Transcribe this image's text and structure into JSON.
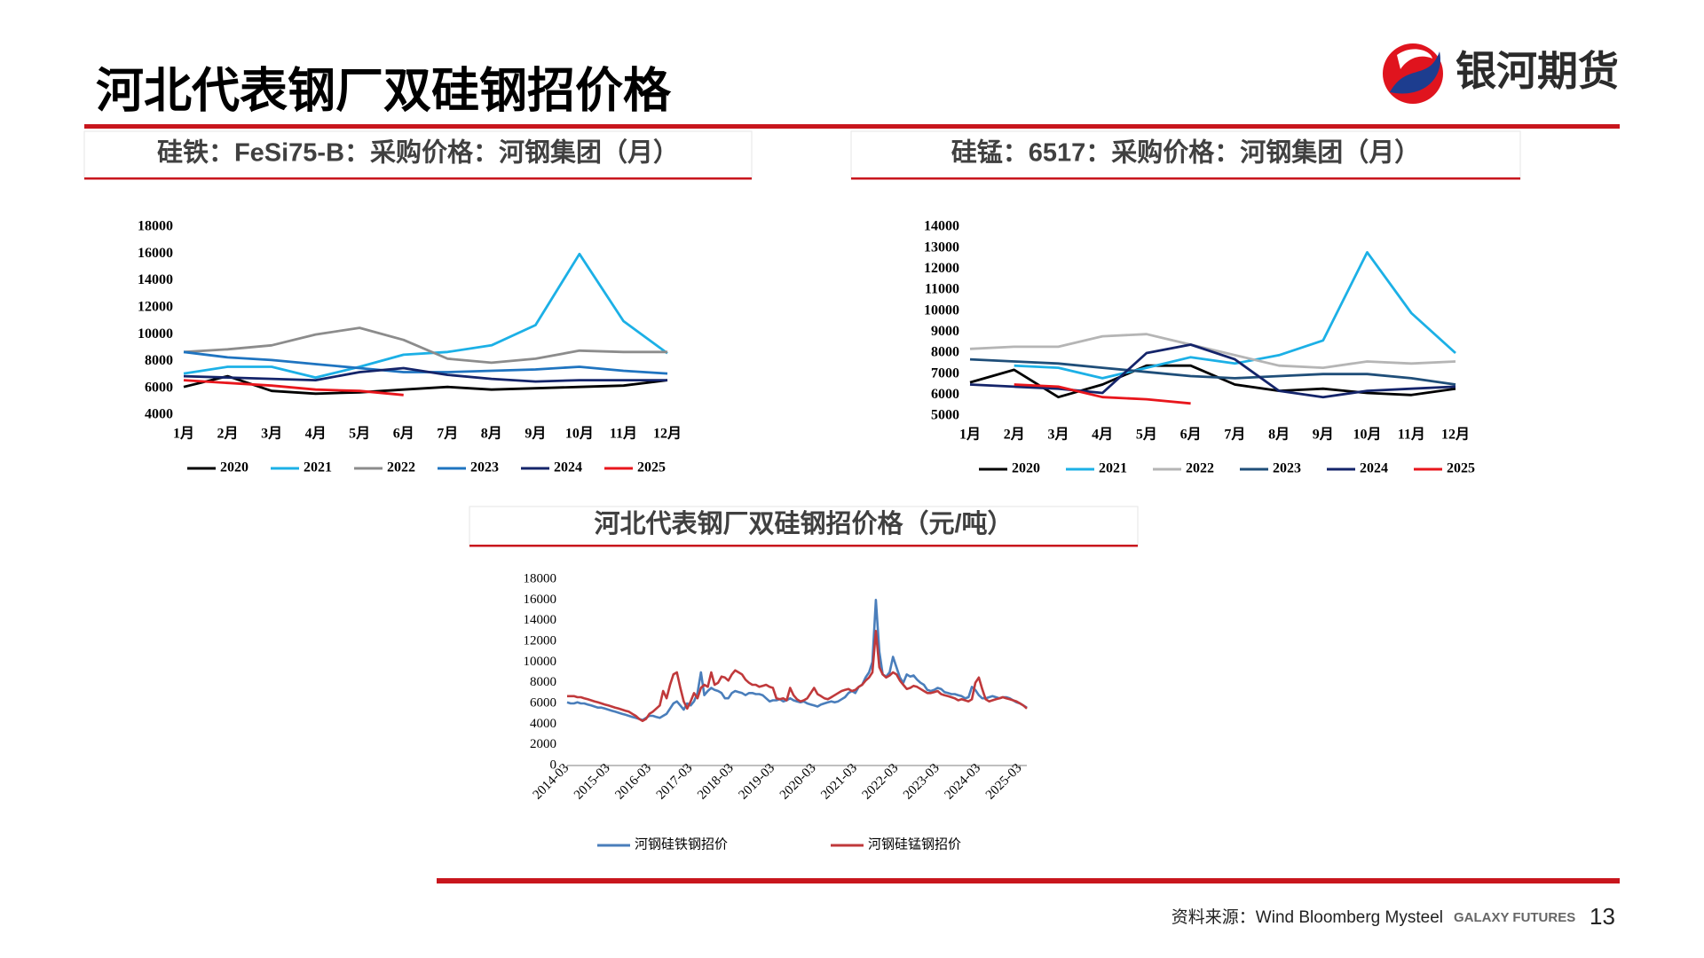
{
  "header": {
    "title": "河北代表钢厂双硅钢招价格",
    "logo_text": "银河期货"
  },
  "footer": {
    "source": "资料来源：Wind Bloomberg Mysteel",
    "brand": "GALAXY FUTURES",
    "page": "13"
  },
  "chart_data": [
    {
      "type": "line",
      "title": "硅铁：FeSi75-B：采购价格：河钢集团（月）",
      "categories": [
        "1月",
        "2月",
        "3月",
        "4月",
        "5月",
        "6月",
        "7月",
        "8月",
        "9月",
        "10月",
        "11月",
        "12月"
      ],
      "ylim": [
        4000,
        18000
      ],
      "yticks": [
        4000,
        6000,
        8000,
        10000,
        12000,
        14000,
        16000,
        18000
      ],
      "grid": false,
      "series": [
        {
          "name": "2020",
          "color": "#000000",
          "values": [
            6100,
            6900,
            5800,
            5600,
            5700,
            5900,
            6100,
            5900,
            6000,
            6100,
            6200,
            6600
          ]
        },
        {
          "name": "2021",
          "color": "#1cb0e6",
          "values": [
            7100,
            7600,
            7600,
            6800,
            7600,
            8500,
            8700,
            9200,
            10700,
            16000,
            11000,
            8600
          ]
        },
        {
          "name": "2022",
          "color": "#8c8c8c",
          "values": [
            8700,
            8900,
            9200,
            10000,
            10500,
            9600,
            8200,
            7900,
            8200,
            8800,
            8700,
            8700
          ]
        },
        {
          "name": "2023",
          "color": "#1f74c0",
          "values": [
            8700,
            8300,
            8100,
            7800,
            7500,
            7200,
            7200,
            7300,
            7400,
            7600,
            7300,
            7100
          ]
        },
        {
          "name": "2024",
          "color": "#14246a",
          "values": [
            6900,
            6800,
            6700,
            6600,
            7200,
            7500,
            7000,
            6700,
            6500,
            6600,
            6600,
            6600
          ]
        },
        {
          "name": "2025",
          "color": "#e8161c",
          "values": [
            6600,
            6400,
            6200,
            5900,
            5800,
            5500,
            null,
            null,
            null,
            null,
            null,
            null
          ]
        }
      ]
    },
    {
      "type": "line",
      "title": "硅锰：6517：采购价格：河钢集团（月）",
      "categories": [
        "1月",
        "2月",
        "3月",
        "4月",
        "5月",
        "6月",
        "7月",
        "8月",
        "9月",
        "10月",
        "11月",
        "12月"
      ],
      "ylim": [
        5000,
        14000
      ],
      "yticks": [
        5000,
        6000,
        7000,
        8000,
        9000,
        10000,
        11000,
        12000,
        13000,
        14000
      ],
      "grid": false,
      "series": [
        {
          "name": "2020",
          "color": "#000000",
          "values": [
            6600,
            7200,
            5900,
            6500,
            7400,
            7400,
            6500,
            6200,
            6300,
            6100,
            6000,
            6300
          ]
        },
        {
          "name": "2021",
          "color": "#1cb0e6",
          "values": [
            null,
            7400,
            7300,
            6800,
            7300,
            7800,
            7500,
            7900,
            8600,
            12800,
            9900,
            8000
          ]
        },
        {
          "name": "2022",
          "color": "#b5b5b5",
          "values": [
            8200,
            8300,
            8300,
            8800,
            8900,
            8400,
            7900,
            7400,
            7300,
            7600,
            7500,
            7600
          ]
        },
        {
          "name": "2023",
          "color": "#1f4e79",
          "values": [
            7700,
            7600,
            7500,
            7300,
            7100,
            6900,
            6800,
            6900,
            7000,
            7000,
            6800,
            6500
          ]
        },
        {
          "name": "2024",
          "color": "#14246a",
          "values": [
            6500,
            6400,
            6300,
            6100,
            8000,
            8400,
            7700,
            6200,
            5900,
            6200,
            6300,
            6400
          ]
        },
        {
          "name": "2025",
          "color": "#e8161c",
          "values": [
            null,
            6500,
            6400,
            5900,
            5800,
            5600,
            null,
            null,
            null,
            null,
            null,
            null
          ]
        }
      ]
    },
    {
      "type": "line",
      "title": "河北代表钢厂双硅钢招价格（元/吨）",
      "x": [
        "2014-03",
        "2014-04",
        "2014-05",
        "2014-06",
        "2014-07",
        "2014-08",
        "2014-09",
        "2014-10",
        "2014-11",
        "2014-12",
        "2015-01",
        "2015-02",
        "2015-03",
        "2015-04",
        "2015-05",
        "2015-06",
        "2015-07",
        "2015-08",
        "2015-09",
        "2015-10",
        "2015-11",
        "2015-12",
        "2016-01",
        "2016-02",
        "2016-03",
        "2016-04",
        "2016-05",
        "2016-06",
        "2016-07",
        "2016-08",
        "2016-09",
        "2016-10",
        "2016-11",
        "2016-12",
        "2017-01",
        "2017-02",
        "2017-03",
        "2017-04",
        "2017-05",
        "2017-06",
        "2017-07",
        "2017-08",
        "2017-09",
        "2017-10",
        "2017-11",
        "2017-12",
        "2018-01",
        "2018-02",
        "2018-03",
        "2018-04",
        "2018-05",
        "2018-06",
        "2018-07",
        "2018-08",
        "2018-09",
        "2018-10",
        "2018-11",
        "2018-12",
        "2019-01",
        "2019-02",
        "2019-03",
        "2019-04",
        "2019-05",
        "2019-06",
        "2019-07",
        "2019-08",
        "2019-09",
        "2019-10",
        "2019-11",
        "2019-12",
        "2020-01",
        "2020-02",
        "2020-03",
        "2020-04",
        "2020-05",
        "2020-06",
        "2020-07",
        "2020-08",
        "2020-09",
        "2020-10",
        "2020-11",
        "2020-12",
        "2021-01",
        "2021-02",
        "2021-03",
        "2021-04",
        "2021-05",
        "2021-06",
        "2021-07",
        "2021-08",
        "2021-09",
        "2021-10",
        "2021-11",
        "2021-12",
        "2022-01",
        "2022-02",
        "2022-03",
        "2022-04",
        "2022-05",
        "2022-06",
        "2022-07",
        "2022-08",
        "2022-09",
        "2022-10",
        "2022-11",
        "2022-12",
        "2023-01",
        "2023-02",
        "2023-03",
        "2023-04",
        "2023-05",
        "2023-06",
        "2023-07",
        "2023-08",
        "2023-09",
        "2023-10",
        "2023-11",
        "2023-12",
        "2024-01",
        "2024-02",
        "2024-03",
        "2024-04",
        "2024-05",
        "2024-06",
        "2024-07",
        "2024-08",
        "2024-09",
        "2024-10",
        "2024-11",
        "2024-12",
        "2025-01",
        "2025-02",
        "2025-03",
        "2025-04",
        "2025-05"
      ],
      "xticks": [
        "2014-03",
        "2015-03",
        "2016-03",
        "2017-03",
        "2018-03",
        "2019-03",
        "2020-03",
        "2021-03",
        "2022-03",
        "2023-03",
        "2024-03",
        "2025-03"
      ],
      "ylim": [
        0,
        18000
      ],
      "yticks": [
        0,
        2000,
        4000,
        6000,
        8000,
        10000,
        12000,
        14000,
        16000,
        18000
      ],
      "grid": false,
      "series": [
        {
          "name": "河钢硅铁钢招价",
          "color": "#4a7ebb",
          "values": [
            6100,
            6000,
            6000,
            6100,
            6000,
            6000,
            5900,
            5800,
            5700,
            5600,
            5600,
            5500,
            5400,
            5300,
            5200,
            5100,
            5000,
            4900,
            4800,
            4700,
            4600,
            4500,
            4400,
            4600,
            4800,
            4800,
            4700,
            4600,
            4800,
            5000,
            5500,
            6000,
            6200,
            5800,
            5400,
            6000,
            5800,
            6200,
            7000,
            9000,
            6800,
            7200,
            7500,
            7300,
            7200,
            7000,
            6500,
            6500,
            7000,
            7200,
            7100,
            7000,
            6800,
            7000,
            7000,
            6900,
            6900,
            6800,
            6500,
            6200,
            6300,
            6300,
            6400,
            6200,
            6300,
            6500,
            6300,
            6200,
            6100,
            6200,
            6000,
            5900,
            5800,
            5700,
            5900,
            6000,
            6100,
            6200,
            6100,
            6200,
            6400,
            6600,
            7000,
            7200,
            7000,
            7600,
            7800,
            8500,
            9000,
            10000,
            16000,
            11000,
            8800,
            8600,
            9000,
            10500,
            9500,
            8500,
            8000,
            8800,
            8600,
            8700,
            8300,
            8000,
            7800,
            7300,
            7200,
            7300,
            7500,
            7400,
            7100,
            7000,
            6900,
            6900,
            6800,
            6700,
            6500,
            6600,
            7600,
            7300,
            6800,
            6500,
            6500,
            6600,
            6700,
            6600,
            6500,
            6600,
            6600,
            6500,
            6300,
            6100,
            6000,
            5800,
            5600
          ]
        },
        {
          "name": "河钢硅锰钢招价",
          "color": "#c0393b",
          "values": [
            6700,
            6700,
            6700,
            6600,
            6600,
            6500,
            6400,
            6300,
            6200,
            6100,
            6000,
            5900,
            5800,
            5700,
            5600,
            5500,
            5400,
            5300,
            5200,
            5000,
            4800,
            4500,
            4300,
            4500,
            5000,
            5200,
            5500,
            5800,
            7200,
            6500,
            7800,
            8800,
            9000,
            7500,
            6200,
            5500,
            6200,
            7000,
            6500,
            7500,
            7800,
            7600,
            9000,
            7800,
            8000,
            8600,
            8500,
            8200,
            8800,
            9200,
            9000,
            8800,
            8300,
            8000,
            7800,
            7800,
            7600,
            7700,
            7800,
            7600,
            7500,
            6500,
            6400,
            6500,
            6300,
            7500,
            6800,
            6400,
            6200,
            6300,
            6500,
            7000,
            7500,
            6900,
            6700,
            6500,
            6400,
            6600,
            6800,
            7000,
            7200,
            7300,
            7400,
            7200,
            7300,
            7600,
            7800,
            8200,
            8500,
            9000,
            13000,
            9500,
            8800,
            8500,
            8700,
            9000,
            8800,
            8200,
            7800,
            7400,
            7500,
            7700,
            7600,
            7400,
            7200,
            7000,
            7000,
            7100,
            7200,
            6900,
            6800,
            6700,
            6600,
            6500,
            6300,
            6400,
            6300,
            6200,
            6400,
            8000,
            8500,
            7400,
            6400,
            6200,
            6300,
            6400,
            6500,
            6600,
            6500,
            6400,
            6300,
            6200,
            6000,
            5800,
            5500
          ]
        }
      ]
    }
  ]
}
